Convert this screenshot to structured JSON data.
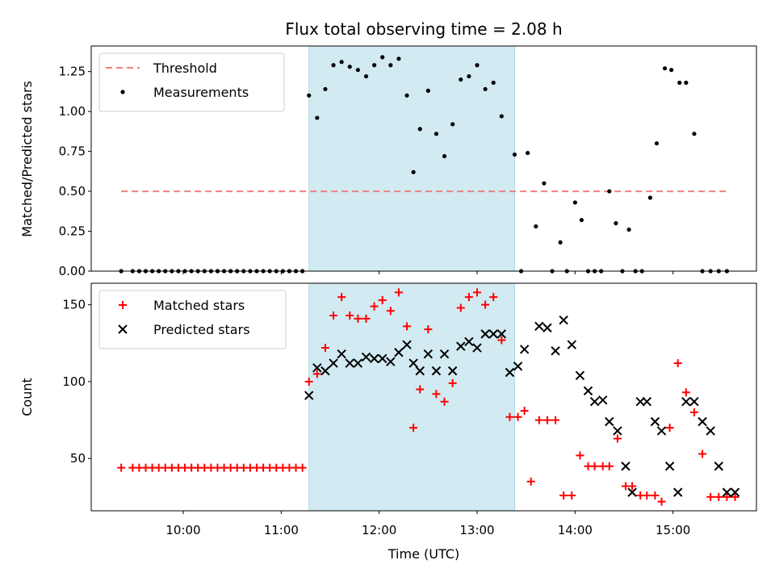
{
  "chart_data": {
    "title": "Flux total observing time = 2.08 h",
    "xlabel": "Time (UTC)",
    "x_ticks": [
      "10:00",
      "11:00",
      "12:00",
      "13:00",
      "14:00",
      "15:00"
    ],
    "highlight_span": {
      "start": "11:17",
      "end": "13:23",
      "color": "#add8e6"
    },
    "panels": [
      {
        "type": "scatter",
        "ylabel": "Matched/Predicted stars",
        "ylim": [
          0.0,
          1.41
        ],
        "y_ticks": [
          "0.00",
          "0.25",
          "0.50",
          "0.75",
          "1.00",
          "1.25"
        ],
        "legend_position": "upper-left",
        "series": [
          {
            "name": "Threshold",
            "kind": "dashed-line",
            "color": "#f08080",
            "x": [
              "09:22",
              "15:33"
            ],
            "y": [
              0.5,
              0.5
            ]
          },
          {
            "name": "Measurements",
            "kind": "points",
            "color": "#000000",
            "x": [
              "09:22",
              "09:29",
              "09:33",
              "09:37",
              "09:41",
              "09:45",
              "09:49",
              "09:53",
              "09:57",
              "10:01",
              "10:05",
              "10:09",
              "10:13",
              "10:17",
              "10:21",
              "10:25",
              "10:29",
              "10:33",
              "10:37",
              "10:41",
              "10:45",
              "10:49",
              "10:53",
              "10:57",
              "11:01",
              "11:05",
              "11:09",
              "11:13",
              "11:17",
              "11:22",
              "11:27",
              "11:32",
              "11:37",
              "11:42",
              "11:47",
              "11:52",
              "11:57",
              "12:02",
              "12:07",
              "12:12",
              "12:17",
              "12:21",
              "12:25",
              "12:30",
              "12:35",
              "12:40",
              "12:45",
              "12:50",
              "12:55",
              "13:00",
              "13:05",
              "13:10",
              "13:15",
              "13:23",
              "13:27",
              "13:31",
              "13:36",
              "13:41",
              "13:46",
              "13:51",
              "13:55",
              "14:00",
              "14:04",
              "14:08",
              "14:12",
              "14:16",
              "14:21",
              "14:25",
              "14:29",
              "14:33",
              "14:37",
              "14:41",
              "14:46",
              "14:50",
              "14:55",
              "14:59",
              "15:04",
              "15:08",
              "15:13",
              "15:18",
              "15:23",
              "15:28",
              "15:33"
            ],
            "y": [
              0.0,
              0.0,
              0.0,
              0.0,
              0.0,
              0.0,
              0.0,
              0.0,
              0.0,
              0.0,
              0.0,
              0.0,
              0.0,
              0.0,
              0.0,
              0.0,
              0.0,
              0.0,
              0.0,
              0.0,
              0.0,
              0.0,
              0.0,
              0.0,
              0.0,
              0.0,
              0.0,
              0.0,
              1.1,
              0.96,
              1.14,
              1.29,
              1.31,
              1.28,
              1.26,
              1.22,
              1.29,
              1.34,
              1.29,
              1.33,
              1.1,
              0.62,
              0.89,
              1.13,
              0.86,
              0.72,
              0.92,
              1.2,
              1.22,
              1.29,
              1.14,
              1.18,
              0.97,
              0.73,
              0.0,
              0.74,
              0.28,
              0.55,
              0.0,
              0.18,
              0.0,
              0.43,
              0.32,
              0.0,
              0.0,
              0.0,
              0.5,
              0.3,
              0.0,
              0.26,
              0.0,
              0.0,
              0.46,
              0.8,
              1.27,
              1.26,
              1.18,
              1.18,
              0.86,
              0.0,
              0.0,
              0.0,
              0.0
            ]
          }
        ]
      },
      {
        "type": "scatter",
        "ylabel": "Count",
        "ylim": [
          16,
          164
        ],
        "y_ticks": [
          "50",
          "100",
          "150"
        ],
        "legend_position": "upper-left",
        "series": [
          {
            "name": "Matched stars",
            "kind": "plus",
            "color": "#ff0000",
            "x": [
              "09:22",
              "09:29",
              "09:33",
              "09:37",
              "09:41",
              "09:45",
              "09:49",
              "09:53",
              "09:57",
              "10:01",
              "10:05",
              "10:09",
              "10:13",
              "10:17",
              "10:21",
              "10:25",
              "10:29",
              "10:33",
              "10:37",
              "10:41",
              "10:45",
              "10:49",
              "10:53",
              "10:57",
              "11:01",
              "11:05",
              "11:09",
              "11:13",
              "11:17",
              "11:22",
              "11:27",
              "11:32",
              "11:37",
              "11:42",
              "11:47",
              "11:52",
              "11:57",
              "12:02",
              "12:07",
              "12:12",
              "12:17",
              "12:21",
              "12:25",
              "12:30",
              "12:35",
              "12:40",
              "12:45",
              "12:50",
              "12:55",
              "13:00",
              "13:05",
              "13:10",
              "13:15",
              "13:20",
              "13:25",
              "13:29",
              "13:33",
              "13:38",
              "13:43",
              "13:48",
              "13:53",
              "13:58",
              "14:03",
              "14:08",
              "14:12",
              "14:17",
              "14:21",
              "14:26",
              "14:31",
              "14:35",
              "14:40",
              "14:44",
              "14:49",
              "14:53",
              "14:58",
              "15:03",
              "15:08",
              "15:13",
              "15:18",
              "15:23",
              "15:28",
              "15:33",
              "15:38"
            ],
            "y": [
              44,
              44,
              44,
              44,
              44,
              44,
              44,
              44,
              44,
              44,
              44,
              44,
              44,
              44,
              44,
              44,
              44,
              44,
              44,
              44,
              44,
              44,
              44,
              44,
              44,
              44,
              44,
              44,
              100,
              105,
              122,
              143,
              155,
              143,
              141,
              141,
              149,
              153,
              146,
              158,
              136,
              70,
              95,
              134,
              92,
              87,
              99,
              148,
              155,
              158,
              150,
              155,
              127,
              77,
              77,
              81,
              35,
              75,
              75,
              75,
              26,
              26,
              52,
              45,
              45,
              45,
              45,
              63,
              32,
              32,
              26,
              26,
              26,
              22,
              70,
              112,
              93,
              80,
              53,
              25,
              25,
              25,
              25
            ]
          },
          {
            "name": "Predicted stars",
            "kind": "cross",
            "color": "#000000",
            "x": [
              "11:17",
              "11:22",
              "11:27",
              "11:32",
              "11:37",
              "11:42",
              "11:47",
              "11:52",
              "11:57",
              "12:02",
              "12:07",
              "12:12",
              "12:17",
              "12:21",
              "12:25",
              "12:30",
              "12:35",
              "12:40",
              "12:45",
              "12:50",
              "12:55",
              "13:00",
              "13:05",
              "13:10",
              "13:15",
              "13:20",
              "13:25",
              "13:29",
              "13:38",
              "13:43",
              "13:48",
              "13:53",
              "13:58",
              "14:03",
              "14:08",
              "14:12",
              "14:17",
              "14:21",
              "14:26",
              "14:31",
              "14:35",
              "14:40",
              "14:44",
              "14:49",
              "14:53",
              "14:58",
              "15:03",
              "15:08",
              "15:13",
              "15:18",
              "15:23",
              "15:28",
              "15:33",
              "15:38"
            ],
            "y": [
              91,
              109,
              107,
              112,
              118,
              112,
              112,
              116,
              115,
              115,
              113,
              119,
              124,
              112,
              107,
              118,
              107,
              118,
              107,
              123,
              126,
              122,
              131,
              131,
              131,
              106,
              110,
              121,
              136,
              135,
              120,
              140,
              124,
              104,
              94,
              87,
              88,
              74,
              68,
              45,
              28,
              87,
              87,
              74,
              68,
              45,
              28,
              87,
              87,
              74,
              68,
              45,
              28,
              28
            ]
          }
        ]
      }
    ]
  }
}
